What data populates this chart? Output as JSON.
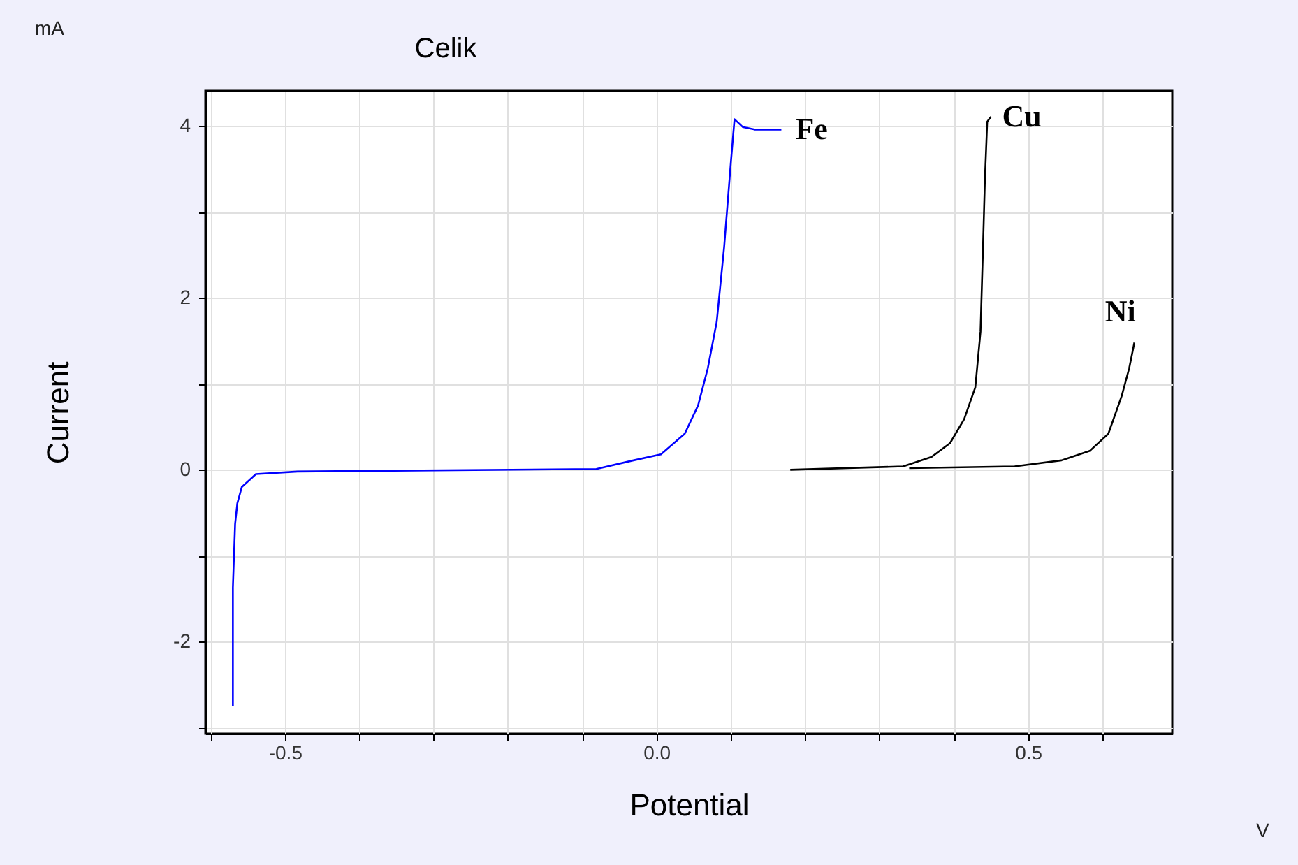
{
  "chart_data": {
    "type": "line",
    "title": "Celik",
    "xlabel": "Potential",
    "ylabel": "Current",
    "annotations": [
      "mA",
      "V"
    ],
    "xlim": [
      -0.607,
      0.694
    ],
    "ylim": [
      -3.07,
      4.41
    ],
    "xticks": [
      {
        "value": -0.6,
        "label": null
      },
      -0.5,
      {
        "value": -0.4,
        "label": null
      },
      {
        "value": -0.3,
        "label": null
      },
      {
        "value": -0.2,
        "label": null
      },
      {
        "value": -0.1,
        "label": null
      },
      {
        "value": 0,
        "label": "0.0"
      },
      {
        "value": 0.1,
        "label": null
      },
      {
        "value": 0.2,
        "label": null
      },
      {
        "value": 0.3,
        "label": null
      },
      {
        "value": 0.4,
        "label": null
      },
      0.5,
      {
        "value": 0.6,
        "label": null
      }
    ],
    "yticks": [
      {
        "value": -3,
        "label": null
      },
      -2,
      {
        "value": -1,
        "label": null
      },
      0,
      {
        "value": 1,
        "label": null
      },
      2,
      {
        "value": 3,
        "label": null
      },
      4
    ],
    "grid": true,
    "legend": false,
    "marker": "none",
    "line_style": "solid",
    "series": [
      {
        "name": "Fe",
        "color": "#0000ff",
        "x": [
          -0.57,
          -0.57,
          -0.567,
          -0.564,
          -0.558,
          -0.539,
          -0.483,
          -0.081,
          -0.031,
          0.006,
          0.038,
          0.056,
          0.069,
          0.081,
          0.091,
          0.1,
          0.105,
          0.116,
          0.132,
          0.168
        ],
        "values": [
          -2.75,
          -1.37,
          -0.63,
          -0.39,
          -0.2,
          -0.05,
          -0.02,
          0.01,
          0.11,
          0.18,
          0.42,
          0.75,
          1.18,
          1.72,
          2.59,
          3.57,
          4.08,
          3.99,
          3.96,
          3.96
        ]
      },
      {
        "name": "Cu",
        "color": "#000000",
        "x": [
          0.18,
          0.332,
          0.37,
          0.395,
          0.414,
          0.429,
          0.436,
          0.439,
          0.442,
          0.445,
          0.45
        ],
        "values": [
          0,
          0.04,
          0.15,
          0.31,
          0.59,
          0.96,
          1.61,
          2.48,
          3.4,
          4.05,
          4.11
        ]
      },
      {
        "name": "Ni",
        "color": "#000000",
        "x": [
          0.34,
          0.482,
          0.545,
          0.583,
          0.608,
          0.626,
          0.636,
          0.643
        ],
        "values": [
          0.02,
          0.04,
          0.11,
          0.22,
          0.42,
          0.86,
          1.18,
          1.48
        ]
      }
    ]
  }
}
